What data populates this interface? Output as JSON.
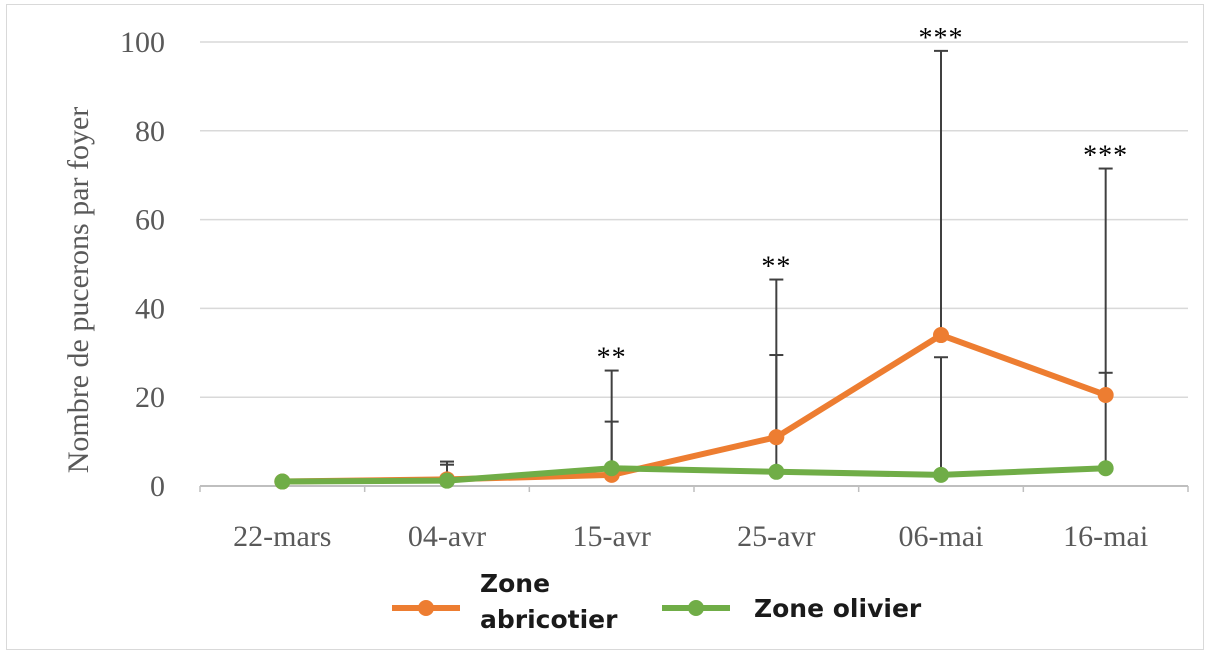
{
  "chart_data": {
    "type": "line",
    "ylabel": "Nombre de pucerons par foyer",
    "xlabel": "",
    "ylim": [
      0,
      100
    ],
    "yticks": [
      0,
      20,
      40,
      60,
      80,
      100
    ],
    "categories": [
      "22-mars",
      "04-avr",
      "15-avr",
      "25-avr",
      "06-mai",
      "16-mai"
    ],
    "grid": true,
    "legend_position": "bottom",
    "series": [
      {
        "name": "Zone abricotier",
        "color": "#ed7d31",
        "values": [
          1,
          1.5,
          2.5,
          11,
          34,
          20.5
        ],
        "error_upper": [
          1.5,
          5.5,
          14.5,
          29.5,
          98,
          71.5
        ]
      },
      {
        "name": "Zone olivier",
        "color": "#70ad47",
        "values": [
          1,
          1.2,
          4,
          3.2,
          2.5,
          4
        ],
        "error_upper": [
          1.2,
          4.8,
          26,
          46.5,
          29,
          25.5
        ]
      }
    ],
    "significance": [
      "",
      "",
      "**",
      "**",
      "***",
      "***"
    ]
  },
  "legend": {
    "series0_line1": "Zone",
    "series0_line2": "abricotier",
    "series1": "Zone olivier"
  }
}
